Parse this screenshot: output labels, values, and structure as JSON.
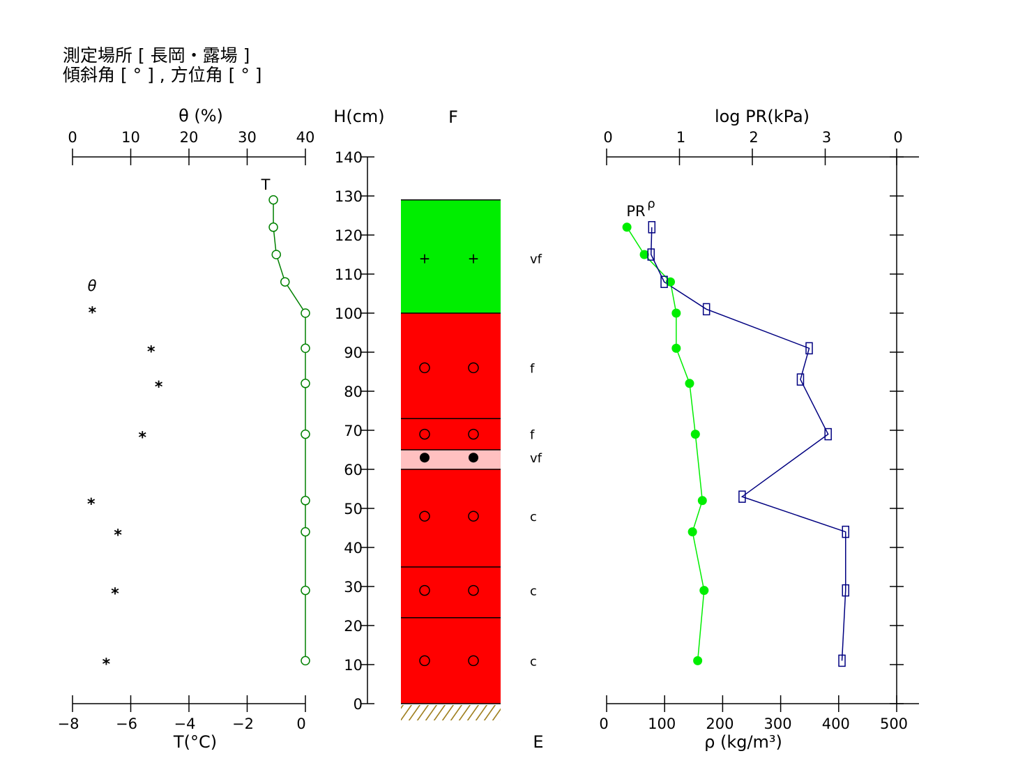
{
  "header": {
    "line1": "測定場所 [ 長岡・露場 ]",
    "line2": "傾斜角 [ ° ] , 方位角 [ ° ]"
  },
  "chart_data": [
    {
      "name": "snow-temperature-and-water-content",
      "type": "scatter",
      "height_axis": {
        "label": "H(cm)",
        "range": [
          0,
          140
        ],
        "ticks": [
          0,
          10,
          20,
          30,
          40,
          50,
          60,
          70,
          80,
          90,
          100,
          110,
          120,
          130,
          140
        ]
      },
      "top_axis": {
        "label": "θ (%)",
        "range": [
          0,
          40
        ],
        "ticks": [
          0,
          10,
          20,
          30,
          40
        ]
      },
      "bottom_axis": {
        "label": "T(°C)",
        "range": [
          -8,
          0
        ],
        "ticks": [
          "−8",
          "−6",
          "−4",
          "−2",
          "0"
        ]
      },
      "series": [
        {
          "name": "T",
          "color": "#008000",
          "marker": "open-circle",
          "connected": true,
          "points": [
            {
              "h": 129,
              "T": -1.1
            },
            {
              "h": 122,
              "T": -1.1
            },
            {
              "h": 115,
              "T": -1.0
            },
            {
              "h": 108,
              "T": -0.7
            },
            {
              "h": 100,
              "T": 0.0
            },
            {
              "h": 91,
              "T": 0.0
            },
            {
              "h": 82,
              "T": 0.0
            },
            {
              "h": 69,
              "T": 0.0
            },
            {
              "h": 52,
              "T": 0.0
            },
            {
              "h": 44,
              "T": 0.0
            },
            {
              "h": 29,
              "T": 0.0
            },
            {
              "h": 11,
              "T": 0.0
            }
          ]
        },
        {
          "name": "θ",
          "color": "#000000",
          "marker": "asterisk",
          "connected": false,
          "points": [
            {
              "h": 101,
              "theta": 3.4
            },
            {
              "h": 91,
              "theta": 13.5
            },
            {
              "h": 82,
              "theta": 14.8
            },
            {
              "h": 69,
              "theta": 12.0
            },
            {
              "h": 52,
              "theta": 3.2
            },
            {
              "h": 44,
              "theta": 7.8
            },
            {
              "h": 29,
              "theta": 7.3
            },
            {
              "h": 11,
              "theta": 5.8
            }
          ]
        }
      ]
    },
    {
      "name": "stratigraphy",
      "type": "table",
      "label": "F",
      "ground_label": "E",
      "layers": [
        {
          "bottom": 100,
          "top": 129,
          "grain": "vf",
          "color": "#00ee00",
          "symbol": "+"
        },
        {
          "bottom": 73,
          "top": 100,
          "grain": "f",
          "color": "#ff0000",
          "symbol": "○"
        },
        {
          "bottom": 65,
          "top": 73,
          "grain": "f",
          "color": "#ff0000",
          "symbol": "○"
        },
        {
          "bottom": 60,
          "top": 65,
          "grain": "vf",
          "color": "#ffc0c0",
          "symbol": "●"
        },
        {
          "bottom": 35,
          "top": 60,
          "grain": "c",
          "color": "#ff0000",
          "symbol": "○"
        },
        {
          "bottom": 22,
          "top": 35,
          "grain": "c",
          "color": "#ff0000",
          "symbol": "○"
        },
        {
          "bottom": 0,
          "top": 22,
          "grain": "c",
          "color": "#ff0000",
          "symbol": "○"
        }
      ],
      "symbol_heights": [
        114,
        86,
        69,
        63,
        48,
        29,
        11
      ]
    },
    {
      "name": "density-and-penetration-resistance",
      "type": "line",
      "top_axis": {
        "label": "log PR(kPa)",
        "range": [
          0,
          4
        ],
        "tick_labels": [
          "0",
          "1",
          "2",
          "3",
          "0"
        ]
      },
      "bottom_axis": {
        "label": "ρ (kg/m³)",
        "range": [
          0,
          500
        ],
        "ticks": [
          0,
          100,
          200,
          300,
          400,
          500
        ]
      },
      "series": [
        {
          "name": "PR",
          "color": "#000080",
          "marker": "open-square",
          "points": [
            {
              "h": 122,
              "logPR": 0.62
            },
            {
              "h": 115,
              "logPR": 0.61
            },
            {
              "h": 108,
              "logPR": 0.79
            },
            {
              "h": 101,
              "logPR": 1.37
            },
            {
              "h": 91,
              "logPR": 2.78
            },
            {
              "h": 83,
              "logPR": 2.66
            },
            {
              "h": 69,
              "logPR": 3.04
            },
            {
              "h": 53,
              "logPR": 1.86
            },
            {
              "h": 44,
              "logPR": 3.28
            },
            {
              "h": 29,
              "logPR": 3.28
            },
            {
              "h": 11,
              "logPR": 3.23
            }
          ]
        },
        {
          "name": "ρ",
          "color": "#00ee00",
          "marker": "filled-circle",
          "points": [
            {
              "h": 122,
              "rho": 35
            },
            {
              "h": 115,
              "rho": 65
            },
            {
              "h": 108,
              "rho": 110
            },
            {
              "h": 100,
              "rho": 120
            },
            {
              "h": 91,
              "rho": 120
            },
            {
              "h": 82,
              "rho": 143
            },
            {
              "h": 69,
              "rho": 153
            },
            {
              "h": 52,
              "rho": 165
            },
            {
              "h": 44,
              "rho": 148
            },
            {
              "h": 29,
              "rho": 168
            },
            {
              "h": 11,
              "rho": 157
            }
          ]
        }
      ]
    }
  ]
}
